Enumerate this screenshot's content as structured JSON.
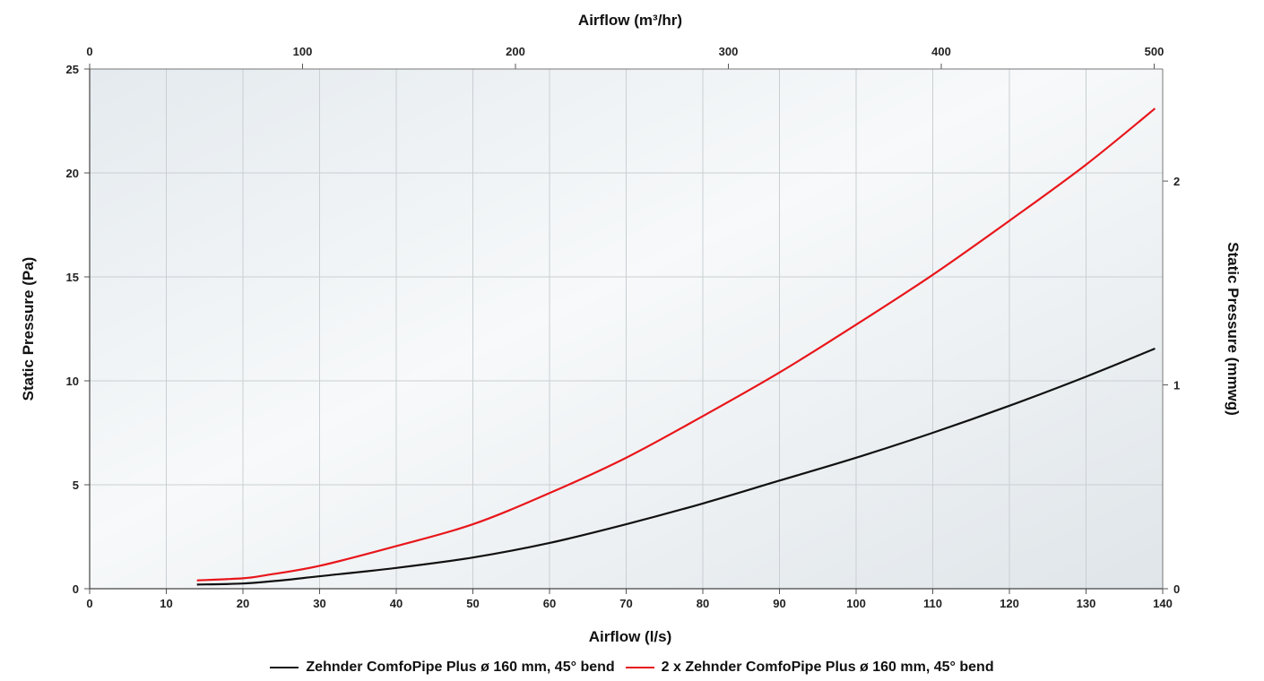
{
  "chart_data": {
    "type": "line",
    "x_bottom": {
      "label": "Airflow (l/s)",
      "ticks": [
        "0",
        "10",
        "20",
        "30",
        "40",
        "50",
        "60",
        "70",
        "80",
        "90",
        "100",
        "110",
        "120",
        "130",
        "140"
      ],
      "range": [
        0,
        140
      ]
    },
    "x_top": {
      "label": "Airflow (m³/hr)",
      "ticks": [
        "0",
        "100",
        "200",
        "300",
        "400",
        "500"
      ],
      "range": [
        0,
        504
      ]
    },
    "y_left": {
      "label": "Static Pressure (Pa)",
      "ticks": [
        "0",
        "5",
        "10",
        "15",
        "20",
        "25"
      ],
      "range": [
        0,
        25
      ]
    },
    "y_right": {
      "label": "Static Pressure (mmwg)",
      "ticks": [
        "0",
        "1",
        "2"
      ],
      "range": [
        0,
        2.55
      ]
    },
    "grid": true,
    "legend_position": "bottom",
    "series": [
      {
        "name": "Zehnder ComfoPipe Plus ø 160 mm, 45° bend",
        "color": "#111111",
        "points": [
          [
            14,
            0.2
          ],
          [
            20,
            0.25
          ],
          [
            25,
            0.4
          ],
          [
            30,
            0.6
          ],
          [
            40,
            1.0
          ],
          [
            50,
            1.5
          ],
          [
            60,
            2.2
          ],
          [
            70,
            3.1
          ],
          [
            80,
            4.1
          ],
          [
            90,
            5.2
          ],
          [
            100,
            6.3
          ],
          [
            110,
            7.5
          ],
          [
            120,
            8.8
          ],
          [
            130,
            10.2
          ],
          [
            139,
            11.55
          ]
        ]
      },
      {
        "name": "2 x Zehnder ComfoPipe Plus ø 160 mm, 45° bend",
        "color": "#e8161b",
        "points": [
          [
            14,
            0.4
          ],
          [
            20,
            0.5
          ],
          [
            23,
            0.65
          ],
          [
            30,
            1.1
          ],
          [
            40,
            2.05
          ],
          [
            50,
            3.1
          ],
          [
            60,
            4.6
          ],
          [
            70,
            6.3
          ],
          [
            80,
            8.3
          ],
          [
            90,
            10.4
          ],
          [
            100,
            12.7
          ],
          [
            110,
            15.1
          ],
          [
            120,
            17.7
          ],
          [
            130,
            20.4
          ],
          [
            139,
            23.1
          ]
        ]
      }
    ]
  }
}
